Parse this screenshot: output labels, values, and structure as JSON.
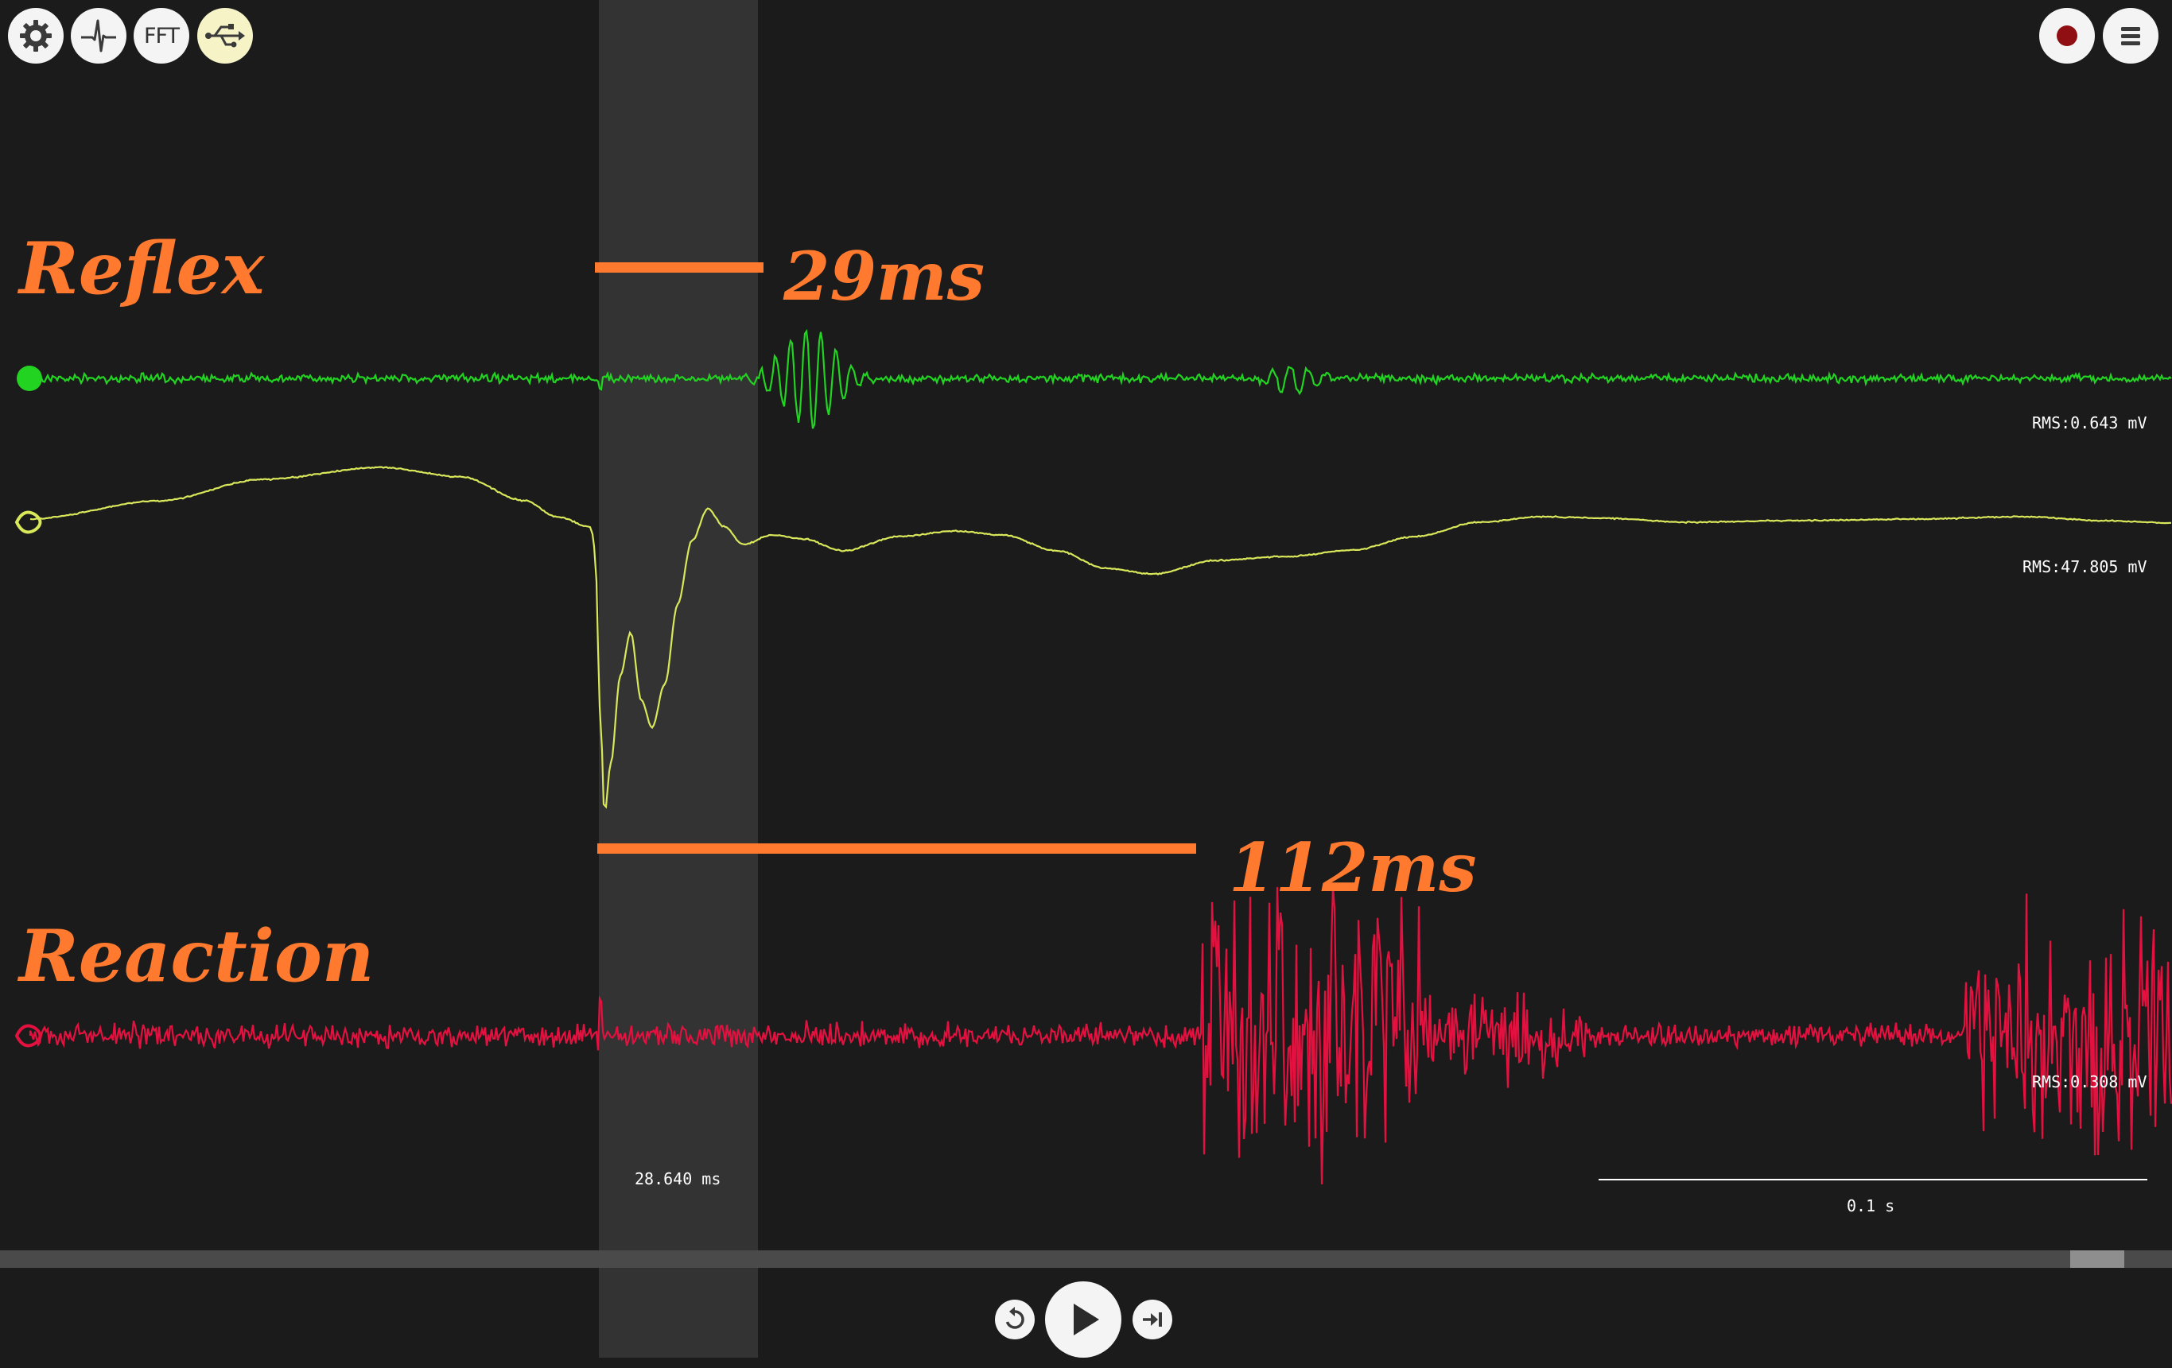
{
  "toolbar": {
    "left": [
      {
        "name": "settings-button",
        "icon": "gear-icon"
      },
      {
        "name": "threshold-button",
        "icon": "spike-icon"
      },
      {
        "name": "fft-button",
        "label": "FFT"
      },
      {
        "name": "usb-button",
        "icon": "usb-icon"
      }
    ],
    "right": [
      {
        "name": "record-button",
        "icon": "record-dot-icon"
      },
      {
        "name": "menu-button",
        "icon": "hamburger-menu-icon"
      }
    ]
  },
  "annotations": {
    "reflex_label": "Reflex",
    "reflex_time": "29ms",
    "reaction_label": "Reaction",
    "reaction_time": "112ms"
  },
  "channels": [
    {
      "id": "ch1",
      "color": "#22d322",
      "rms": "RMS:0.643 mV"
    },
    {
      "id": "ch2",
      "color": "#d9e85a",
      "rms": "RMS:47.805 mV"
    },
    {
      "id": "ch3",
      "color": "#e3113f",
      "rms": "RMS:0.308 mV"
    }
  ],
  "selection": {
    "duration": "28.640 ms"
  },
  "scale_bar": {
    "label": "0.1 s"
  },
  "accent_color": "#ff7a2f",
  "playback": {
    "icons": [
      "rewind-icon",
      "play-icon",
      "skip-to-end-icon"
    ]
  }
}
